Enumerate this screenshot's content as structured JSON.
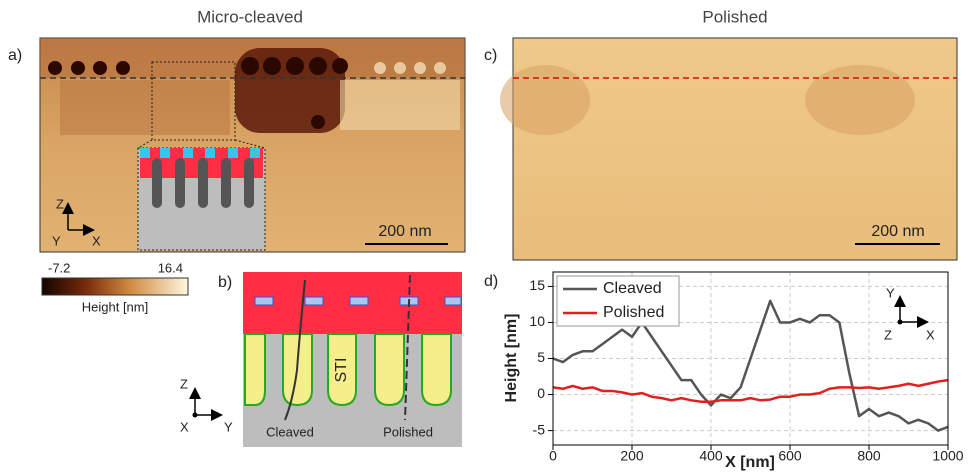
{
  "panels": {
    "a": {
      "label": "a)",
      "title": "Micro-cleaved",
      "scale_bar": "200 nm",
      "axes": [
        "Z",
        "Y",
        "X"
      ]
    },
    "b": {
      "label": "b)",
      "texts": [
        "STI",
        "Cleaved",
        "Polished"
      ],
      "axes": [
        "Z",
        "X",
        "Y"
      ]
    },
    "c": {
      "label": "c)",
      "title": "Polished",
      "scale_bar": "200 nm"
    },
    "colorbar": {
      "min": -7.2,
      "max": 16.4,
      "label": "Height [nm]"
    }
  },
  "chart_data": {
    "type": "line",
    "label": "d)",
    "xlabel": "X [nm]",
    "ylabel": "Height [nm]",
    "x": [
      0,
      25,
      50,
      75,
      100,
      125,
      150,
      175,
      200,
      225,
      250,
      275,
      300,
      325,
      350,
      375,
      400,
      425,
      450,
      475,
      500,
      525,
      550,
      575,
      600,
      625,
      650,
      675,
      700,
      725,
      750,
      775,
      800,
      825,
      850,
      875,
      900,
      925,
      950,
      975,
      1000
    ],
    "series": [
      {
        "name": "Cleaved",
        "color": "#555555",
        "values": [
          5,
          4.5,
          5.5,
          6,
          6,
          7,
          8,
          9,
          8,
          10,
          8,
          6,
          4,
          2,
          2,
          0,
          -1.5,
          0,
          -0.5,
          1,
          5,
          9,
          13,
          10,
          10,
          10.5,
          10,
          11,
          11,
          10,
          3,
          -3,
          -2,
          -3,
          -2.5,
          -3,
          -4,
          -3.5,
          -4,
          -5,
          -4.5
        ]
      },
      {
        "name": "Polished",
        "color": "#e02020",
        "values": [
          1,
          0.8,
          1.2,
          0.8,
          1,
          0.5,
          0.5,
          0.3,
          0,
          0.2,
          -0.3,
          -0.5,
          -0.8,
          -0.5,
          -0.8,
          -1,
          -1,
          -0.8,
          -0.8,
          -0.8,
          -0.5,
          -0.8,
          -0.7,
          -0.3,
          -0.3,
          0,
          0,
          0.2,
          0.8,
          1,
          1,
          0.9,
          1,
          0.8,
          1,
          1.2,
          1.5,
          1.2,
          1.5,
          1.8,
          2
        ]
      }
    ],
    "xlim": [
      0,
      1000
    ],
    "ylim": [
      -7,
      17
    ],
    "xticks": [
      0,
      200,
      400,
      600,
      800,
      1000
    ],
    "yticks": [
      -5,
      0,
      5,
      10,
      15
    ],
    "grid": true,
    "legend": "upper left",
    "axes_indicator": [
      "Y",
      "Z",
      "X"
    ]
  }
}
